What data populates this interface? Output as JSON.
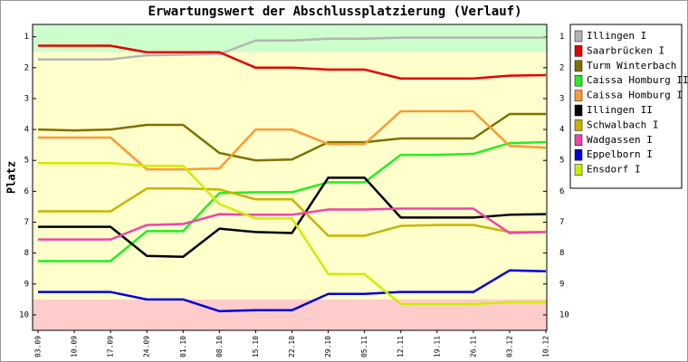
{
  "chart_data": {
    "type": "line",
    "title": "Erwartungswert der Abschlussplatzierung (Verlauf)",
    "y_label": "Platz",
    "categories": [
      "03.09",
      "10.09",
      "17.09",
      "24.09",
      "01.10",
      "08.10",
      "15.10",
      "22.10",
      "29.10",
      "05.11",
      "12.11",
      "19.11",
      "26.11",
      "03.12",
      "10.12"
    ],
    "ylim": [
      0.6,
      10.5
    ],
    "y_inverted": true,
    "yticks": [
      1,
      2,
      3,
      4,
      5,
      6,
      7,
      8,
      9,
      10
    ],
    "bands": [
      {
        "from": 0.6,
        "to": 1.5,
        "color": "#ccffcc"
      },
      {
        "from": 1.5,
        "to": 9.5,
        "color": "#ffffcc"
      },
      {
        "from": 9.5,
        "to": 10.5,
        "color": "#ffcccc"
      }
    ],
    "legend": "right",
    "series": [
      {
        "name": "Illingen I",
        "color": "#b4b4b4",
        "values": [
          1.73,
          1.73,
          1.73,
          1.6,
          1.58,
          1.56,
          1.12,
          1.12,
          1.06,
          1.06,
          1.03,
          1.03,
          1.03,
          1.03,
          1.03
        ]
      },
      {
        "name": "Saarbrücken I",
        "color": "#e60000",
        "values": [
          1.29,
          1.29,
          1.29,
          1.5,
          1.5,
          1.5,
          2.0,
          2.0,
          2.06,
          2.06,
          2.35,
          2.35,
          2.35,
          2.26,
          2.24
        ]
      },
      {
        "name": "Turm Winterbach",
        "color": "#807000",
        "values": [
          4.0,
          4.03,
          4.0,
          3.85,
          3.85,
          4.76,
          5.0,
          4.97,
          4.41,
          4.41,
          4.29,
          4.29,
          4.29,
          3.5,
          3.5
        ]
      },
      {
        "name": "Caissa Homburg II",
        "color": "#22ee22",
        "values": [
          8.26,
          8.26,
          8.26,
          7.29,
          7.29,
          6.06,
          6.03,
          6.03,
          5.71,
          5.71,
          4.82,
          4.82,
          4.79,
          4.44,
          4.41
        ]
      },
      {
        "name": "Caissa Homburg I",
        "color": "#ff9933",
        "values": [
          4.26,
          4.26,
          4.26,
          5.29,
          5.29,
          5.26,
          4.0,
          4.0,
          4.47,
          4.47,
          3.41,
          3.41,
          3.41,
          4.53,
          4.59
        ]
      },
      {
        "name": "Illingen II",
        "color": "#000000",
        "values": [
          7.15,
          7.15,
          7.15,
          8.09,
          8.12,
          7.21,
          7.32,
          7.35,
          5.56,
          5.56,
          6.85,
          6.85,
          6.85,
          6.76,
          6.74
        ]
      },
      {
        "name": "Schwalbach I",
        "color": "#c8b400",
        "values": [
          6.65,
          6.65,
          6.65,
          5.91,
          5.91,
          5.94,
          6.26,
          6.26,
          7.44,
          7.44,
          7.12,
          7.09,
          7.09,
          7.32,
          7.32
        ]
      },
      {
        "name": "Wadgassen I",
        "color": "#ee44aa",
        "values": [
          7.56,
          7.56,
          7.56,
          7.09,
          7.06,
          6.74,
          6.76,
          6.76,
          6.59,
          6.59,
          6.56,
          6.56,
          6.56,
          7.35,
          7.32
        ]
      },
      {
        "name": "Eppelborn I",
        "color": "#0000dd",
        "values": [
          9.26,
          9.26,
          9.26,
          9.5,
          9.5,
          9.88,
          9.85,
          9.85,
          9.32,
          9.32,
          9.26,
          9.26,
          9.26,
          8.56,
          8.59
        ]
      },
      {
        "name": "Ensdorf I",
        "color": "#ccee00",
        "values": [
          5.09,
          5.09,
          5.09,
          5.18,
          5.18,
          6.41,
          6.88,
          6.88,
          8.68,
          8.68,
          9.65,
          9.65,
          9.65,
          9.59,
          9.59
        ]
      }
    ]
  }
}
